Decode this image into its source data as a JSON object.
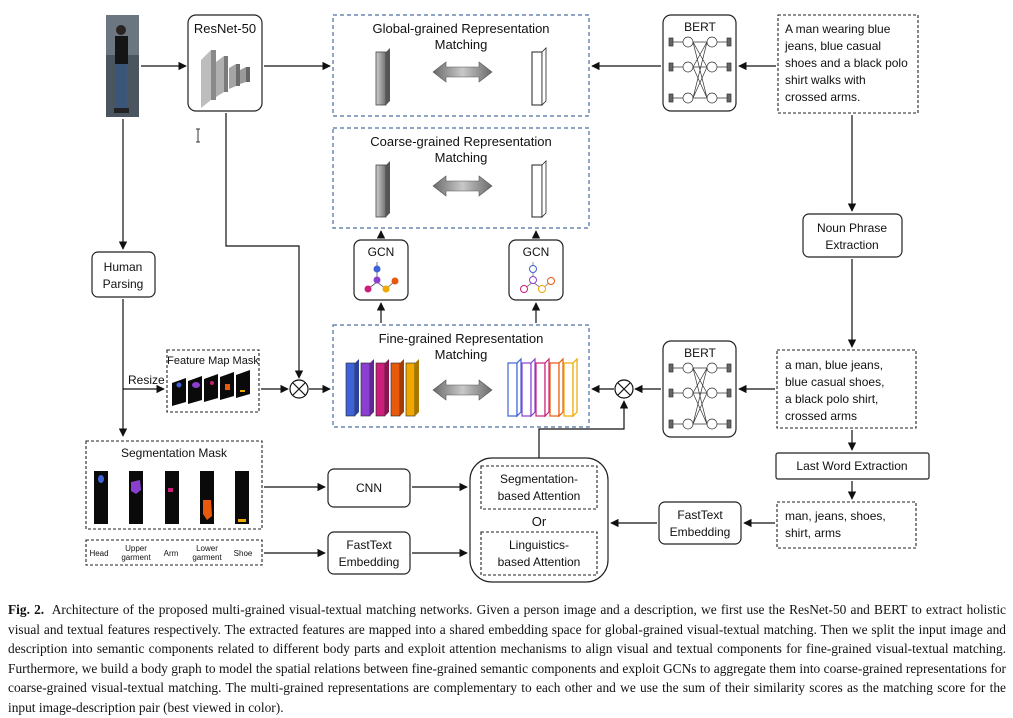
{
  "nodes": {
    "resnet": "ResNet-50",
    "bert_top": "BERT",
    "bert_bottom": "BERT",
    "global_matching": [
      "Global-grained Representation",
      "Matching"
    ],
    "coarse_matching": [
      "Coarse-grained Representation",
      "Matching"
    ],
    "fine_matching": [
      "Fine-grained Representation",
      "Matching"
    ],
    "gcn_left": "GCN",
    "gcn_right": "GCN",
    "human_parsing": [
      "Human",
      "Parsing"
    ],
    "noun_phrase": [
      "Noun Phrase",
      "Extraction"
    ],
    "feature_map_mask": "Feature Map Mask",
    "resize": "Resize",
    "segmentation_mask": "Segmentation Mask",
    "cnn": "CNN",
    "fasttext_left": [
      "FastText",
      "Embedding"
    ],
    "fasttext_right": [
      "FastText",
      "Embedding"
    ],
    "last_word": "Last Word Extraction",
    "seg_attention": [
      "Segmentation-",
      "based Attention"
    ],
    "or": "Or",
    "ling_attention": [
      "Linguistics-",
      "based Attention"
    ]
  },
  "description_text": [
    "A man wearing blue",
    "jeans,  blue casual",
    "shoes and a black polo",
    "shirt walks with",
    "crossed arms."
  ],
  "noun_phrases": [
    "a man, blue jeans,",
    "blue casual shoes,",
    "a black polo shirt,",
    "crossed arms"
  ],
  "last_words": [
    "man, jeans, shoes,",
    "shirt, arms"
  ],
  "body_parts": [
    "Head",
    "Upper garment",
    "Arm",
    "Lower garment",
    "Shoe"
  ],
  "colors": {
    "blue": "#3f63d6",
    "purple": "#8a3fd0",
    "magenta": "#cc1f7a",
    "orange": "#e8590c",
    "gold": "#f0a800",
    "frame": "#4a6fa5"
  },
  "caption": {
    "label": "Fig. 2.",
    "text": "Architecture of the proposed multi-grained visual-textual matching networks. Given a person image and a description, we first use the ResNet-50 and BERT to extract holistic visual and textual features respectively. The extracted features are mapped into a shared embedding space for global-grained visual-textual matching. Then we split the input image and description into semantic components related to different body parts and exploit attention mechanisms to align visual and textual components for fine-grained visual-textual matching. Furthermore, we build a body graph to model the spatial relations between fine-grained semantic components and exploit GCNs to aggregate them into coarse-grained representations for coarse-grained visual-textual matching. The multi-grained representations are complementary to each other and we use the sum of their similarity scores as the matching score for the input image-description pair (best viewed in color)."
  }
}
